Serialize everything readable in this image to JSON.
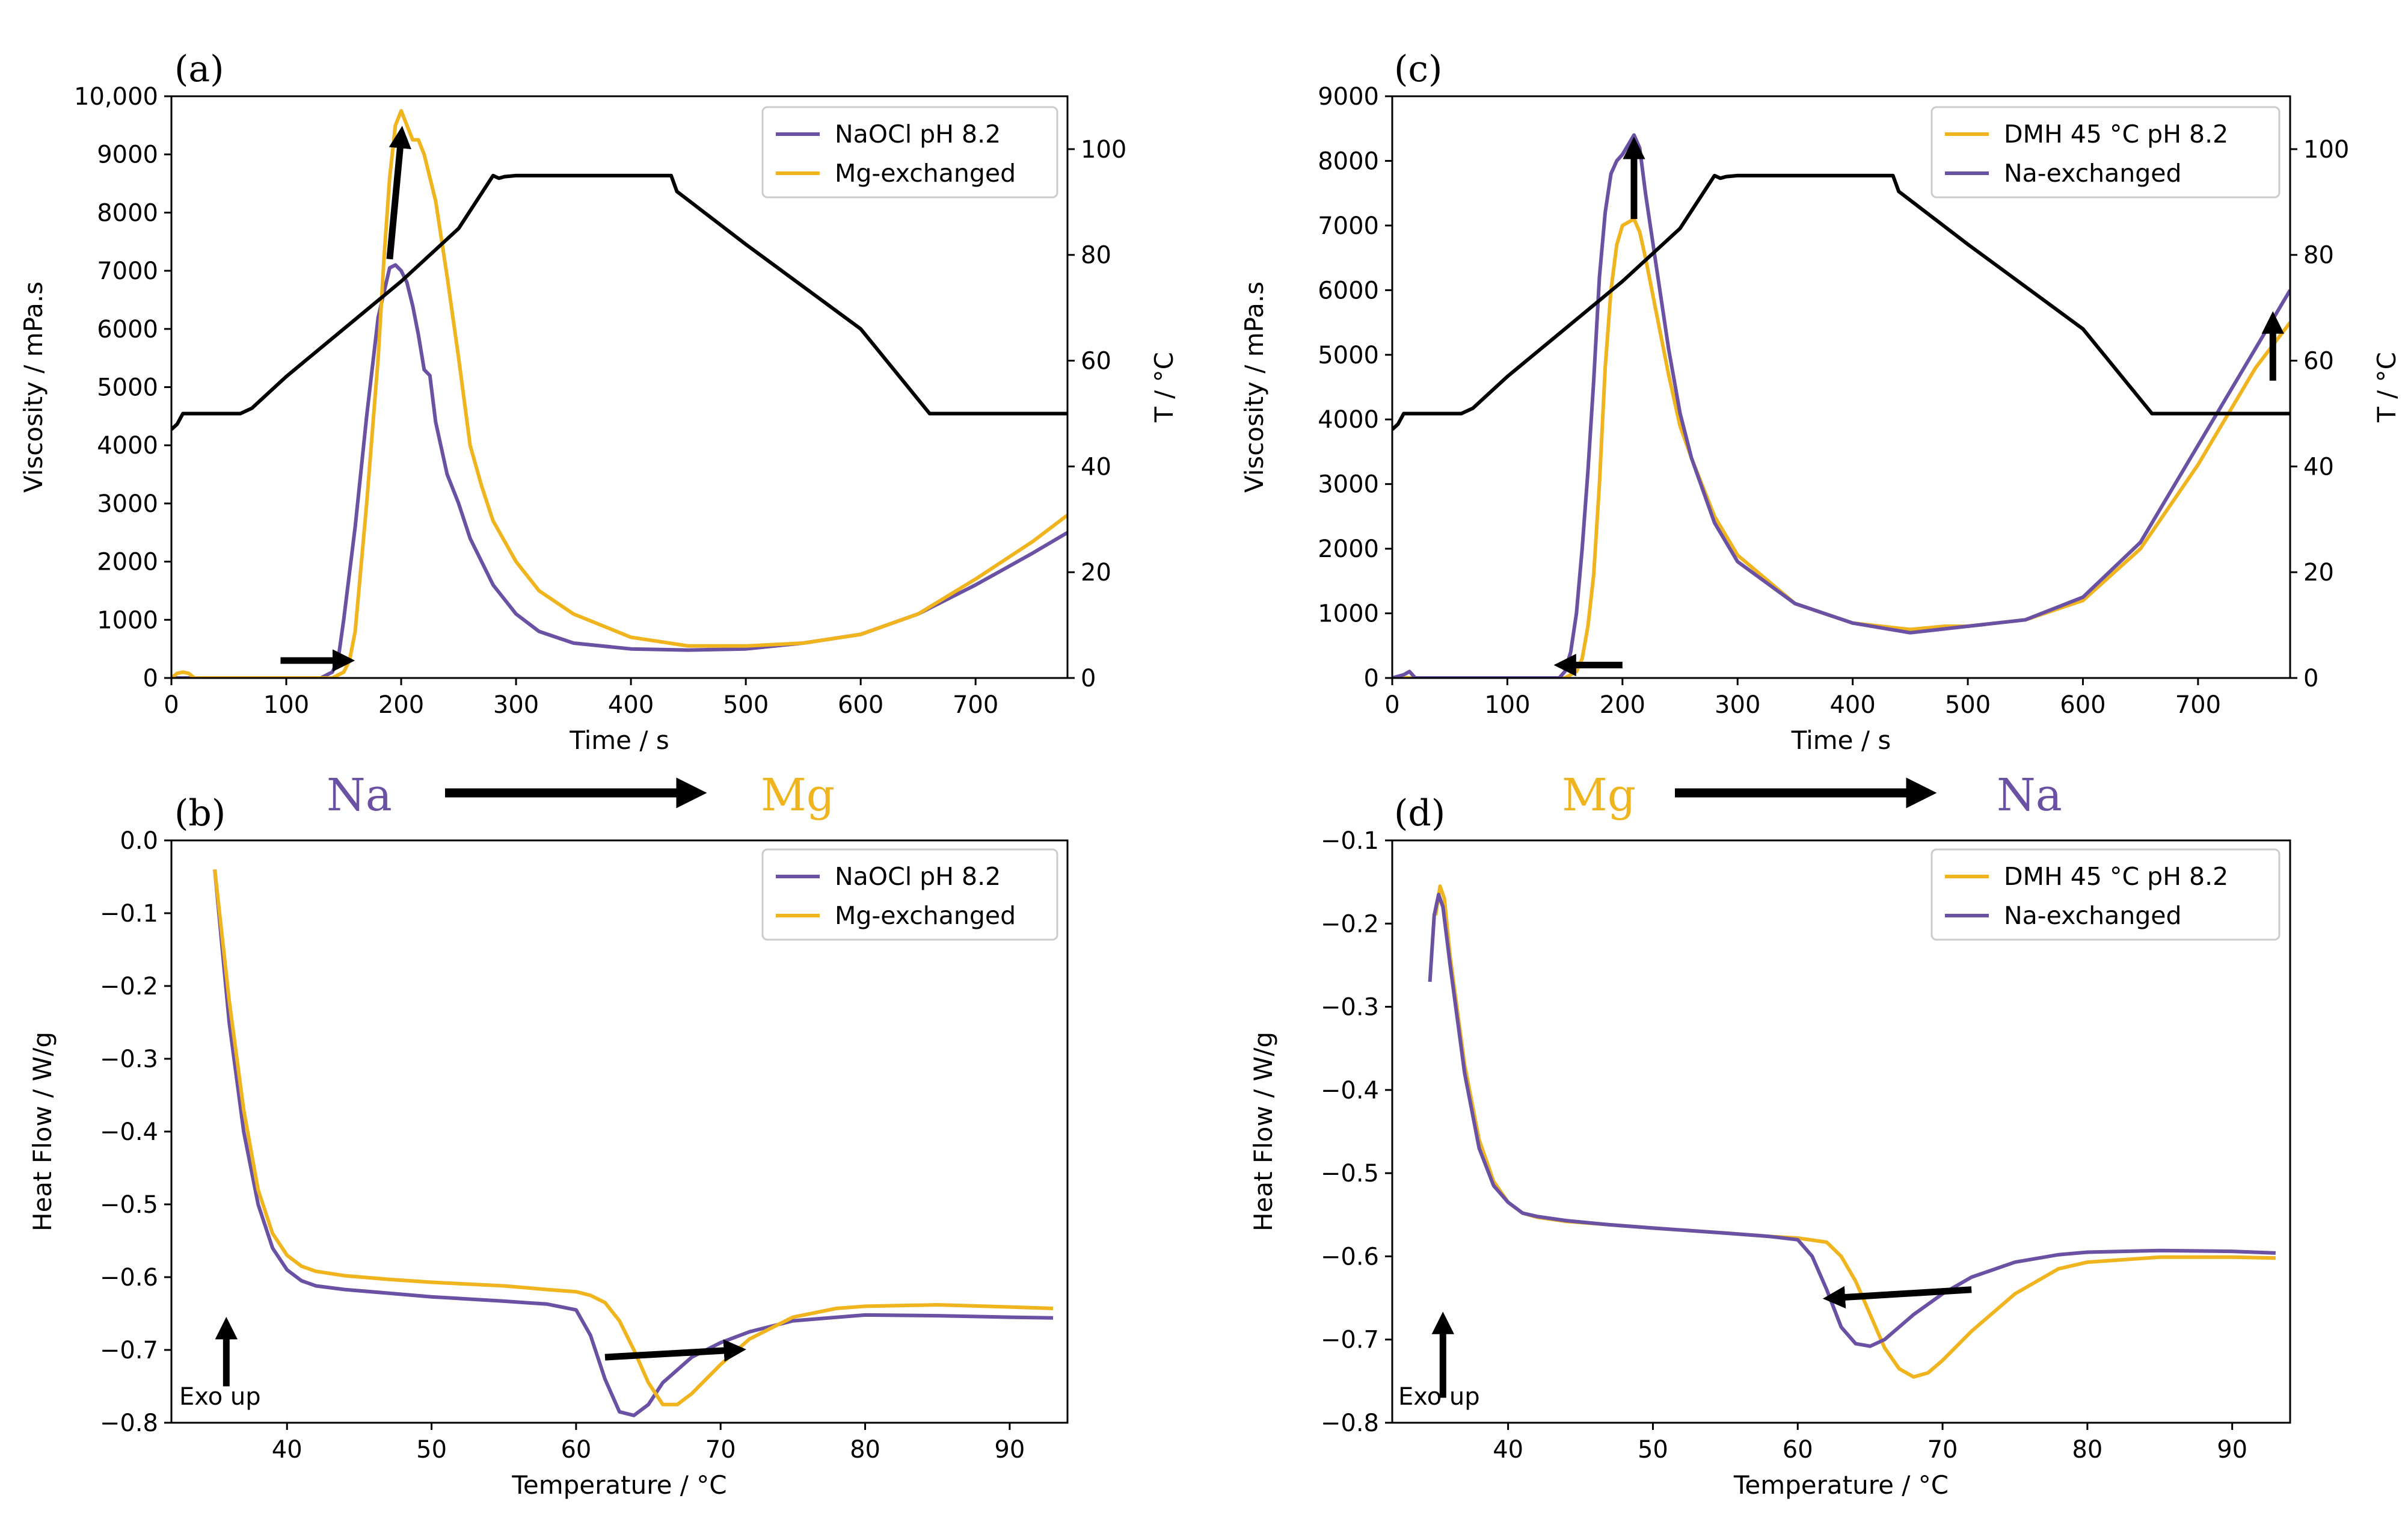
{
  "colors": {
    "purple": "#6a51a3",
    "orange": "#f0b41e",
    "black": "#000000"
  },
  "arrow_row": {
    "left": {
      "from": "Na",
      "to": "Mg"
    },
    "right": {
      "from": "Mg",
      "to": "Na"
    }
  },
  "chart_data": [
    {
      "id": "a",
      "panel_label": "(a)",
      "type": "line",
      "xlabel": "Time / s",
      "ylabel": "Viscosity / mPa.s",
      "y2label": "T / °C",
      "xlim": [
        0,
        780
      ],
      "ylim": [
        0,
        10000
      ],
      "y2lim": [
        0,
        110
      ],
      "xticks": [
        0,
        100,
        200,
        300,
        400,
        500,
        600,
        700
      ],
      "yticks": [
        0,
        1000,
        2000,
        3000,
        4000,
        5000,
        6000,
        7000,
        8000,
        9000,
        10000
      ],
      "ytick_labels": [
        "0",
        "1000",
        "2000",
        "3000",
        "4000",
        "5000",
        "6000",
        "7000",
        "8000",
        "9000",
        "10,000"
      ],
      "y2ticks": [
        0,
        20,
        40,
        60,
        80,
        100
      ],
      "legend": [
        "NaOCl pH 8.2",
        "Mg-exchanged"
      ],
      "series": [
        {
          "name": "NaOCl pH 8.2",
          "color": "#6a51a3",
          "axis": "y",
          "x": [
            0,
            10,
            20,
            100,
            130,
            140,
            145,
            150,
            160,
            170,
            180,
            190,
            195,
            200,
            205,
            210,
            215,
            220,
            225,
            230,
            240,
            250,
            260,
            270,
            280,
            300,
            320,
            350,
            400,
            450,
            500,
            550,
            600,
            650,
            700,
            750,
            780
          ],
          "y": [
            0,
            0,
            0,
            0,
            0,
            100,
            300,
            1000,
            2600,
            4500,
            6200,
            7050,
            7100,
            7000,
            6800,
            6400,
            5900,
            5300,
            5200,
            4400,
            3500,
            3000,
            2400,
            2000,
            1600,
            1100,
            800,
            600,
            500,
            480,
            500,
            600,
            750,
            1100,
            1600,
            2150,
            2500
          ]
        },
        {
          "name": "Mg-exchanged",
          "color": "#f0b41e",
          "axis": "y",
          "x": [
            0,
            5,
            10,
            15,
            20,
            25,
            100,
            140,
            150,
            155,
            160,
            170,
            180,
            185,
            190,
            195,
            200,
            205,
            210,
            215,
            220,
            230,
            240,
            250,
            260,
            270,
            280,
            300,
            320,
            350,
            400,
            450,
            500,
            550,
            600,
            650,
            700,
            750,
            780
          ],
          "y": [
            0,
            80,
            100,
            80,
            0,
            0,
            0,
            0,
            100,
            300,
            800,
            3000,
            5500,
            7200,
            8600,
            9500,
            9750,
            9500,
            9250,
            9250,
            9000,
            8200,
            6900,
            5500,
            4000,
            3300,
            2700,
            2000,
            1500,
            1100,
            700,
            550,
            550,
            600,
            750,
            1100,
            1700,
            2350,
            2800
          ]
        },
        {
          "name": "Temperature",
          "color": "#000000",
          "axis": "y2",
          "x": [
            0,
            5,
            10,
            60,
            70,
            100,
            150,
            200,
            250,
            280,
            285,
            290,
            300,
            350,
            435,
            440,
            500,
            600,
            660,
            665,
            700,
            780
          ],
          "y": [
            47,
            48,
            50,
            50,
            51,
            57,
            66,
            75,
            85,
            95,
            94.5,
            94.8,
            95,
            95,
            95,
            92,
            82,
            66,
            50,
            50,
            50,
            50
          ]
        }
      ],
      "annotations": [
        {
          "type": "arrow",
          "x1": 95,
          "y1": 300,
          "x2": 150,
          "y2": 300
        },
        {
          "type": "arrow",
          "x1": 190,
          "y1": 7200,
          "x2": 200,
          "y2": 9300
        }
      ]
    },
    {
      "id": "b",
      "panel_label": "(b)",
      "type": "line",
      "xlabel": "Temperature / °C",
      "ylabel": "Heat Flow / W/g",
      "xlim": [
        32,
        94
      ],
      "ylim": [
        -0.8,
        0.0
      ],
      "xticks": [
        40,
        50,
        60,
        70,
        80,
        90
      ],
      "yticks": [
        0.0,
        -0.1,
        -0.2,
        -0.3,
        -0.4,
        -0.5,
        -0.6,
        -0.7,
        -0.8
      ],
      "ytick_labels": [
        "0.0",
        "−0.1",
        "−0.2",
        "−0.3",
        "−0.4",
        "−0.5",
        "−0.6",
        "−0.7",
        "−0.8"
      ],
      "legend": [
        "NaOCl pH 8.2",
        "Mg-exchanged"
      ],
      "series": [
        {
          "name": "NaOCl pH 8.2",
          "color": "#6a51a3",
          "x": [
            35,
            36,
            37,
            38,
            39,
            40,
            41,
            42,
            44,
            47,
            50,
            55,
            58,
            60,
            61,
            62,
            63,
            64,
            65,
            66,
            68,
            70,
            72,
            75,
            80,
            85,
            90,
            93
          ],
          "y": [
            -0.04,
            -0.25,
            -0.4,
            -0.5,
            -0.56,
            -0.59,
            -0.605,
            -0.612,
            -0.617,
            -0.622,
            -0.627,
            -0.633,
            -0.637,
            -0.645,
            -0.68,
            -0.74,
            -0.785,
            -0.79,
            -0.775,
            -0.745,
            -0.71,
            -0.69,
            -0.675,
            -0.66,
            -0.652,
            -0.653,
            -0.655,
            -0.656
          ]
        },
        {
          "name": "Mg-exchanged",
          "color": "#f0b41e",
          "x": [
            35,
            36,
            37,
            38,
            39,
            40,
            41,
            42,
            44,
            47,
            50,
            55,
            58,
            60,
            61,
            62,
            63,
            64,
            65,
            66,
            67,
            68,
            70,
            72,
            75,
            78,
            80,
            85,
            90,
            93
          ],
          "y": [
            -0.04,
            -0.22,
            -0.37,
            -0.48,
            -0.54,
            -0.57,
            -0.585,
            -0.592,
            -0.598,
            -0.603,
            -0.607,
            -0.612,
            -0.617,
            -0.62,
            -0.625,
            -0.635,
            -0.66,
            -0.7,
            -0.745,
            -0.775,
            -0.775,
            -0.76,
            -0.72,
            -0.685,
            -0.655,
            -0.643,
            -0.64,
            -0.638,
            -0.641,
            -0.643
          ]
        }
      ],
      "annotations": [
        {
          "type": "arrow",
          "x1": 35.8,
          "y1": -0.75,
          "x2": 35.8,
          "y2": -0.67
        },
        {
          "type": "arrow",
          "x1": 62,
          "y1": -0.71,
          "x2": 71,
          "y2": -0.7
        }
      ],
      "note": "Exo up"
    },
    {
      "id": "c",
      "panel_label": "(c)",
      "type": "line",
      "xlabel": "Time / s",
      "ylabel": "Viscosity / mPa.s",
      "y2label": "T / °C",
      "xlim": [
        0,
        780
      ],
      "ylim": [
        0,
        9000
      ],
      "y2lim": [
        0,
        110
      ],
      "xticks": [
        0,
        100,
        200,
        300,
        400,
        500,
        600,
        700
      ],
      "yticks": [
        0,
        1000,
        2000,
        3000,
        4000,
        5000,
        6000,
        7000,
        8000,
        9000
      ],
      "ytick_labels": [
        "0",
        "1000",
        "2000",
        "3000",
        "4000",
        "5000",
        "6000",
        "7000",
        "8000",
        "9000"
      ],
      "y2ticks": [
        0,
        20,
        40,
        60,
        80,
        100
      ],
      "legend": [
        "DMH 45 °C pH 8.2",
        "Na-exchanged"
      ],
      "series": [
        {
          "name": "DMH 45 °C pH 8.2",
          "color": "#f0b41e",
          "axis": "y",
          "x": [
            0,
            10,
            20,
            100,
            150,
            160,
            165,
            170,
            175,
            180,
            185,
            190,
            195,
            200,
            205,
            210,
            215,
            220,
            230,
            240,
            250,
            260,
            280,
            300,
            350,
            400,
            450,
            480,
            500,
            550,
            600,
            650,
            700,
            750,
            780
          ],
          "y": [
            0,
            0,
            0,
            0,
            0,
            100,
            300,
            800,
            1600,
            3000,
            4800,
            6000,
            6700,
            7000,
            7050,
            7100,
            6900,
            6500,
            5600,
            4700,
            3900,
            3400,
            2500,
            1900,
            1150,
            850,
            750,
            800,
            800,
            900,
            1200,
            2000,
            3300,
            4800,
            5500
          ]
        },
        {
          "name": "Na-exchanged",
          "color": "#6a51a3",
          "axis": "y",
          "x": [
            0,
            10,
            15,
            20,
            100,
            145,
            150,
            155,
            160,
            165,
            170,
            175,
            180,
            185,
            190,
            195,
            200,
            205,
            210,
            215,
            220,
            230,
            240,
            250,
            260,
            280,
            300,
            350,
            400,
            450,
            500,
            550,
            600,
            650,
            700,
            750,
            780
          ],
          "y": [
            0,
            50,
            100,
            0,
            0,
            0,
            100,
            400,
            1000,
            2000,
            3200,
            4600,
            6200,
            7200,
            7800,
            8000,
            8100,
            8250,
            8400,
            8200,
            7500,
            6300,
            5100,
            4100,
            3400,
            2400,
            1800,
            1150,
            850,
            700,
            800,
            900,
            1250,
            2100,
            3600,
            5100,
            6000
          ]
        },
        {
          "name": "Temperature",
          "color": "#000000",
          "axis": "y2",
          "x": [
            0,
            5,
            10,
            60,
            70,
            100,
            150,
            200,
            250,
            280,
            285,
            290,
            300,
            350,
            435,
            440,
            500,
            600,
            660,
            665,
            700,
            780
          ],
          "y": [
            47,
            48,
            50,
            50,
            51,
            57,
            66,
            75,
            85,
            95,
            94.5,
            94.8,
            95,
            95,
            95,
            92,
            82,
            66,
            50,
            50,
            50,
            50
          ]
        }
      ],
      "annotations": [
        {
          "type": "arrow",
          "x1": 200,
          "y1": 200,
          "x2": 150,
          "y2": 200
        },
        {
          "type": "arrow",
          "x1": 210,
          "y1": 7100,
          "x2": 210,
          "y2": 8200
        },
        {
          "type": "arrow",
          "x1": 765,
          "y1": 4600,
          "x2": 765,
          "y2": 5500
        }
      ]
    },
    {
      "id": "d",
      "panel_label": "(d)",
      "type": "line",
      "xlabel": "Temperature / °C",
      "ylabel": "Heat Flow / W/g",
      "xlim": [
        32,
        94
      ],
      "ylim": [
        -0.8,
        -0.1
      ],
      "xticks": [
        40,
        50,
        60,
        70,
        80,
        90
      ],
      "yticks": [
        -0.1,
        -0.2,
        -0.3,
        -0.4,
        -0.5,
        -0.6,
        -0.7,
        -0.8
      ],
      "ytick_labels": [
        "−0.1",
        "−0.2",
        "−0.3",
        "−0.4",
        "−0.5",
        "−0.6",
        "−0.7",
        "−0.8"
      ],
      "legend": [
        "DMH 45 °C pH 8.2",
        "Na-exchanged"
      ],
      "series": [
        {
          "name": "DMH 45 °C pH 8.2",
          "color": "#f0b41e",
          "x": [
            35,
            35.3,
            35.6,
            36,
            37,
            38,
            39,
            40,
            41,
            42,
            44,
            47,
            50,
            55,
            58,
            60,
            62,
            63,
            64,
            65,
            66,
            67,
            68,
            69,
            70,
            72,
            75,
            78,
            80,
            85,
            90,
            93
          ],
          "y": [
            -0.19,
            -0.155,
            -0.17,
            -0.24,
            -0.37,
            -0.46,
            -0.51,
            -0.535,
            -0.548,
            -0.553,
            -0.558,
            -0.562,
            -0.566,
            -0.572,
            -0.576,
            -0.578,
            -0.583,
            -0.6,
            -0.63,
            -0.67,
            -0.71,
            -0.735,
            -0.745,
            -0.74,
            -0.725,
            -0.69,
            -0.645,
            -0.615,
            -0.607,
            -0.601,
            -0.601,
            -0.602
          ]
        },
        {
          "name": "Na-exchanged",
          "color": "#6a51a3",
          "x": [
            34.6,
            34.9,
            35.2,
            35.5,
            36,
            37,
            38,
            39,
            40,
            41,
            42,
            44,
            47,
            50,
            55,
            58,
            60,
            61,
            62,
            63,
            64,
            65,
            66,
            67,
            68,
            70,
            72,
            75,
            78,
            80,
            85,
            90,
            93
          ],
          "y": [
            -0.27,
            -0.19,
            -0.165,
            -0.18,
            -0.25,
            -0.38,
            -0.47,
            -0.515,
            -0.535,
            -0.548,
            -0.552,
            -0.557,
            -0.562,
            -0.566,
            -0.572,
            -0.576,
            -0.58,
            -0.6,
            -0.64,
            -0.685,
            -0.705,
            -0.708,
            -0.7,
            -0.685,
            -0.67,
            -0.645,
            -0.625,
            -0.607,
            -0.598,
            -0.595,
            -0.593,
            -0.594,
            -0.596
          ]
        }
      ],
      "annotations": [
        {
          "type": "arrow",
          "x1": 35.5,
          "y1": -0.77,
          "x2": 35.5,
          "y2": -0.68
        },
        {
          "type": "arrow",
          "x1": 72,
          "y1": -0.64,
          "x2": 62.5,
          "y2": -0.65
        }
      ],
      "note": "Exo up"
    }
  ]
}
